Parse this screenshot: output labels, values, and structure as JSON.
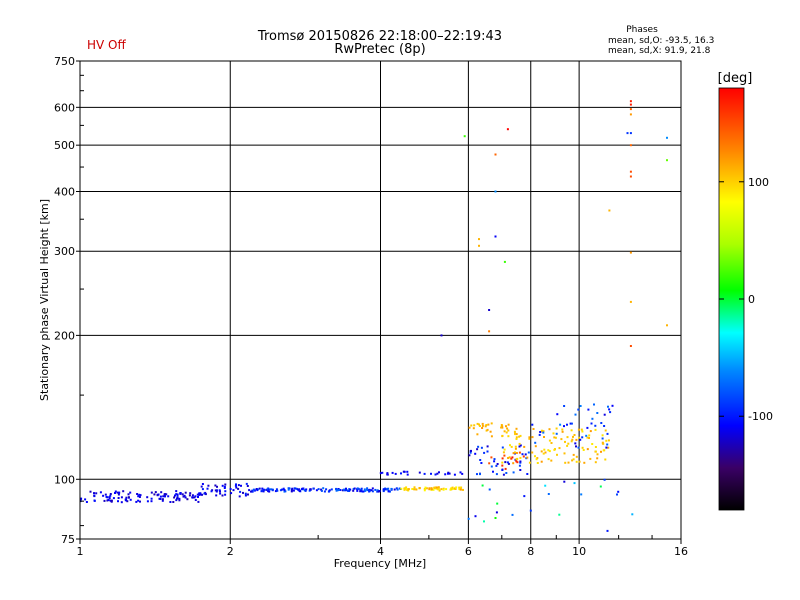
{
  "status_label": "HV Off",
  "title_line1": "Tromsø 20150826 22:18:00–22:19:43",
  "title_line2": "RwPretec (8p)",
  "stats": {
    "heading": "Phases",
    "line_o": "mean, sd,O: -93.5, 16.3",
    "line_x": "mean, sd,X:  91.9, 21.8"
  },
  "colorbar": {
    "label": "[deg]",
    "ticks": [
      "100",
      "0",
      "-100"
    ],
    "tick_values": [
      100,
      0,
      -100
    ],
    "min": -180,
    "max": 180
  },
  "chart_data": {
    "type": "scatter",
    "title": "Tromsø 20150826 22:18:00–22:19:43",
    "subtitle": "RwPretec (8p)",
    "xlabel": "Frequency [MHz]",
    "ylabel": "Stationary phase Virtual Height [km]",
    "xscale": "log",
    "yscale": "log",
    "xlim": [
      1,
      16
    ],
    "ylim": [
      75,
      750
    ],
    "x_ticks": [
      1,
      2,
      4,
      6,
      8,
      10,
      16
    ],
    "x_tick_labels": [
      "1",
      "2",
      "4",
      "6",
      "8",
      "10",
      "16"
    ],
    "y_ticks": [
      75,
      100,
      200,
      300,
      400,
      500,
      600,
      750
    ],
    "y_tick_labels": [
      "75",
      "100",
      "200",
      "300",
      "400",
      "500",
      "600",
      "750"
    ],
    "grid": true,
    "color_variable": "phase [deg]",
    "groups": [
      {
        "x_range": [
          1.0,
          1.75
        ],
        "y_base": 92,
        "y_jitter": 2.5,
        "count": 120,
        "phase": -115,
        "phase_jitter": 12
      },
      {
        "x_range": [
          1.75,
          2.2
        ],
        "y_base": 95,
        "y_jitter": 3,
        "count": 45,
        "phase": -110,
        "phase_jitter": 15
      },
      {
        "x_range": [
          2.2,
          4.4
        ],
        "y_base": 95,
        "y_jitter": 0.8,
        "count": 150,
        "phase": -95,
        "phase_jitter": 25
      },
      {
        "x_range": [
          4.4,
          5.9
        ],
        "y_base": 95.5,
        "y_jitter": 0.8,
        "count": 60,
        "phase": 100,
        "phase_jitter": 20
      },
      {
        "x_range": [
          4.0,
          5.9
        ],
        "y_base": 103,
        "y_jitter": 0.8,
        "count": 25,
        "phase": -110,
        "phase_jitter": 10
      },
      {
        "x_range": [
          6.0,
          8.0
        ],
        "y_base": 110,
        "y_jitter": 8,
        "count": 45,
        "phase": -100,
        "phase_jitter": 25
      },
      {
        "x_range": [
          6.0,
          7.5
        ],
        "y_base": 127,
        "y_jitter": 4,
        "count": 30,
        "phase": 110,
        "phase_jitter": 10
      },
      {
        "x_range": [
          7.0,
          11.5
        ],
        "y_base": 118,
        "y_jitter": 10,
        "count": 120,
        "phase": 105,
        "phase_jitter": 15
      },
      {
        "x_range": [
          8.0,
          12.0
        ],
        "y_base": 130,
        "y_jitter": 14,
        "count": 40,
        "phase": -90,
        "phase_jitter": 30
      },
      {
        "x_range": [
          6.0,
          13.0
        ],
        "y_base": 90,
        "y_jitter": 10,
        "count": 20,
        "phase": -60,
        "phase_jitter": 60
      },
      {
        "x_range": [
          6.0,
          8.0
        ],
        "y_base": 110,
        "y_jitter": 5,
        "count": 12,
        "phase": 160,
        "phase_jitter": 15
      }
    ],
    "points": [
      {
        "x": 5.9,
        "y": 522,
        "phase": 20
      },
      {
        "x": 7.2,
        "y": 540,
        "phase": 180
      },
      {
        "x": 6.8,
        "y": 478,
        "phase": 140
      },
      {
        "x": 6.8,
        "y": 400,
        "phase": -60
      },
      {
        "x": 6.3,
        "y": 318,
        "phase": 110
      },
      {
        "x": 6.3,
        "y": 308,
        "phase": 110
      },
      {
        "x": 6.8,
        "y": 322,
        "phase": -110
      },
      {
        "x": 7.1,
        "y": 285,
        "phase": 20
      },
      {
        "x": 6.6,
        "y": 226,
        "phase": -120
      },
      {
        "x": 6.6,
        "y": 204,
        "phase": 130
      },
      {
        "x": 5.3,
        "y": 200,
        "phase": -120
      },
      {
        "x": 12.7,
        "y": 618,
        "phase": 170
      },
      {
        "x": 12.7,
        "y": 608,
        "phase": 170
      },
      {
        "x": 12.7,
        "y": 595,
        "phase": 140
      },
      {
        "x": 12.7,
        "y": 580,
        "phase": 120
      },
      {
        "x": 12.7,
        "y": 530,
        "phase": -90
      },
      {
        "x": 12.5,
        "y": 530,
        "phase": -90
      },
      {
        "x": 12.7,
        "y": 500,
        "phase": 140
      },
      {
        "x": 12.7,
        "y": 440,
        "phase": 150
      },
      {
        "x": 12.7,
        "y": 430,
        "phase": 150
      },
      {
        "x": 11.5,
        "y": 365,
        "phase": 110
      },
      {
        "x": 12.7,
        "y": 298,
        "phase": 120
      },
      {
        "x": 12.7,
        "y": 235,
        "phase": 110
      },
      {
        "x": 12.7,
        "y": 190,
        "phase": 150
      },
      {
        "x": 15.0,
        "y": 518,
        "phase": -60
      },
      {
        "x": 15.0,
        "y": 465,
        "phase": 30
      },
      {
        "x": 15.0,
        "y": 210,
        "phase": 110
      },
      {
        "x": 11.4,
        "y": 78,
        "phase": -100
      },
      {
        "x": 8.0,
        "y": 86,
        "phase": -90
      },
      {
        "x": 6.8,
        "y": 83,
        "phase": 10
      }
    ]
  }
}
